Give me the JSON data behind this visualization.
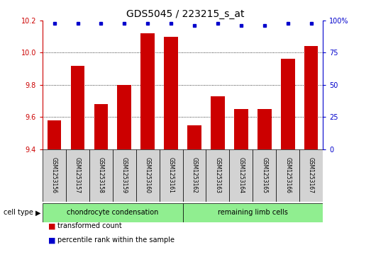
{
  "title": "GDS5045 / 223215_s_at",
  "samples": [
    "GSM1253156",
    "GSM1253157",
    "GSM1253158",
    "GSM1253159",
    "GSM1253160",
    "GSM1253161",
    "GSM1253162",
    "GSM1253163",
    "GSM1253164",
    "GSM1253165",
    "GSM1253166",
    "GSM1253167"
  ],
  "transformed_counts": [
    9.58,
    9.92,
    9.68,
    9.8,
    10.12,
    10.1,
    9.55,
    9.73,
    9.65,
    9.65,
    9.96,
    10.04
  ],
  "percentile_ranks": [
    98,
    98,
    98,
    98,
    98,
    98,
    96,
    98,
    96,
    96,
    98,
    98
  ],
  "bar_color": "#cc0000",
  "dot_color": "#0000cc",
  "ylim_left": [
    9.4,
    10.2
  ],
  "ylim_right": [
    0,
    100
  ],
  "yticks_left": [
    9.4,
    9.6,
    9.8,
    10.0,
    10.2
  ],
  "yticks_right": [
    0,
    25,
    50,
    75,
    100
  ],
  "grid_values": [
    9.6,
    9.8,
    10.0
  ],
  "cell_types": [
    {
      "label": "chondrocyte condensation",
      "start": 0,
      "end": 6,
      "color": "#90ee90"
    },
    {
      "label": "remaining limb cells",
      "start": 6,
      "end": 12,
      "color": "#90ee90"
    }
  ],
  "cell_type_label": "cell type",
  "legend_items": [
    {
      "label": "transformed count",
      "color": "#cc0000"
    },
    {
      "label": "percentile rank within the sample",
      "color": "#0000cc"
    }
  ],
  "bar_width": 0.6,
  "background_color": "#ffffff",
  "plot_bg_color": "#ffffff",
  "left_axis_color": "#cc0000",
  "right_axis_color": "#0000cc",
  "title_fontsize": 10,
  "tick_fontsize": 7,
  "sample_fontsize": 5.5,
  "cell_fontsize": 7,
  "legend_fontsize": 7
}
